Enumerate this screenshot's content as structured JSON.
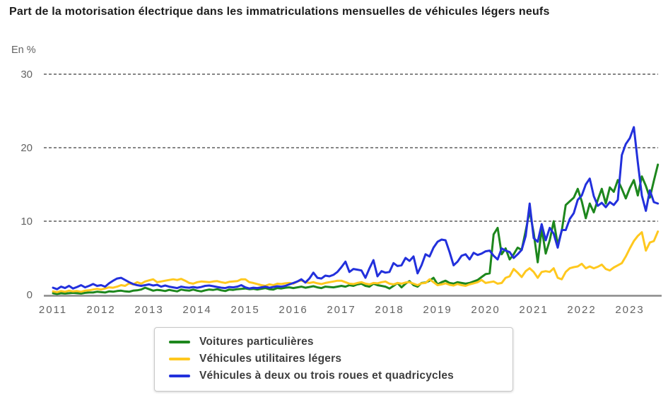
{
  "title": "Part de la motorisation électrique dans les immatriculations mensuelles de véhicules légers neufs",
  "unit_label": "En %",
  "chart_data": {
    "type": "line",
    "title": "Part de la motorisation électrique dans les immatriculations mensuelles de véhicules légers neufs",
    "xlabel": "",
    "ylabel": "En %",
    "ylim": [
      0,
      30
    ],
    "yticks": [
      0,
      10,
      20,
      30
    ],
    "grid": "horizontal-dashed",
    "legend_position": "bottom",
    "x_tick_years": [
      "2011",
      "2012",
      "2013",
      "2014",
      "2015",
      "2016",
      "2017",
      "2018",
      "2019",
      "2020",
      "2021",
      "2022",
      "2023"
    ],
    "x_frequency": "monthly",
    "x_range": "Jan 2011 - Aug 2023",
    "colors": {
      "grid": "#3f3f3f",
      "axis": "#8a8a8a",
      "tick_text": "#636363",
      "green": "#1d871d",
      "yellow": "#ffc81e",
      "blue": "#2230dc"
    },
    "series": [
      {
        "name": "Voitures particulières",
        "color": "#1d871d",
        "values": [
          0.2,
          0.1,
          0.2,
          0.15,
          0.2,
          0.25,
          0.2,
          0.15,
          0.25,
          0.3,
          0.3,
          0.4,
          0.35,
          0.3,
          0.45,
          0.4,
          0.5,
          0.55,
          0.45,
          0.4,
          0.55,
          0.6,
          0.7,
          0.95,
          0.75,
          0.55,
          0.65,
          0.6,
          0.5,
          0.65,
          0.55,
          0.45,
          0.7,
          0.6,
          0.55,
          0.7,
          0.55,
          0.45,
          0.6,
          0.7,
          0.65,
          0.75,
          0.6,
          0.5,
          0.7,
          0.65,
          0.75,
          0.8,
          0.85,
          0.75,
          0.8,
          0.7,
          0.8,
          0.9,
          0.75,
          0.7,
          0.9,
          0.85,
          0.95,
          1.0,
          0.9,
          1.0,
          1.1,
          0.95,
          1.05,
          1.15,
          1.0,
          0.9,
          1.1,
          1.05,
          1.0,
          1.1,
          1.2,
          1.1,
          1.3,
          1.2,
          1.4,
          1.5,
          1.2,
          1.1,
          1.5,
          1.3,
          1.2,
          1.1,
          0.85,
          1.2,
          1.6,
          1.0,
          1.5,
          1.85,
          1.3,
          1.1,
          1.6,
          1.65,
          1.9,
          2.3,
          1.4,
          1.7,
          1.9,
          1.6,
          1.5,
          1.7,
          1.6,
          1.5,
          1.6,
          1.8,
          2.0,
          2.4,
          2.8,
          2.9,
          8.2,
          9.1,
          5.5,
          6.3,
          4.8,
          5.5,
          6.4,
          6.1,
          8.7,
          11.4,
          8.4,
          4.4,
          9.0,
          5.6,
          7.4,
          10.0,
          6.8,
          8.7,
          12.2,
          12.7,
          13.2,
          14.4,
          12.7,
          10.4,
          12.4,
          11.2,
          12.9,
          14.4,
          12.4,
          14.6,
          14.0,
          15.6,
          14.4,
          13.1,
          14.5,
          15.6,
          13.5,
          16.1,
          14.8,
          13.2,
          15.5,
          17.7
        ]
      },
      {
        "name": "Véhicules utilitaires légers",
        "color": "#ffc81e",
        "values": [
          0.45,
          0.35,
          0.5,
          0.4,
          0.55,
          0.45,
          0.5,
          0.4,
          0.55,
          0.6,
          0.7,
          0.8,
          0.7,
          0.85,
          1.0,
          0.95,
          1.1,
          1.3,
          1.2,
          1.55,
          1.4,
          1.7,
          1.5,
          1.8,
          1.95,
          2.1,
          1.7,
          1.8,
          1.9,
          2.0,
          2.1,
          2.0,
          2.15,
          1.9,
          1.6,
          1.5,
          1.7,
          1.8,
          1.75,
          1.7,
          1.8,
          1.85,
          1.7,
          1.6,
          1.75,
          1.8,
          1.85,
          2.1,
          2.1,
          1.7,
          1.6,
          1.45,
          1.3,
          1.2,
          1.4,
          1.3,
          1.5,
          1.45,
          1.55,
          1.6,
          1.5,
          1.8,
          1.95,
          1.7,
          1.6,
          1.7,
          1.55,
          1.45,
          1.6,
          1.7,
          1.8,
          1.9,
          1.9,
          1.7,
          1.5,
          1.45,
          1.6,
          1.7,
          1.5,
          1.4,
          1.6,
          1.55,
          1.7,
          1.8,
          1.5,
          1.4,
          1.6,
          1.5,
          1.65,
          1.7,
          1.5,
          1.3,
          1.55,
          1.6,
          2.1,
          1.7,
          1.3,
          1.4,
          1.55,
          1.35,
          1.25,
          1.45,
          1.3,
          1.2,
          1.4,
          1.55,
          1.7,
          2.0,
          1.6,
          1.7,
          1.8,
          1.5,
          1.6,
          2.3,
          2.5,
          3.5,
          3.0,
          2.4,
          3.2,
          3.6,
          3.1,
          2.3,
          3.1,
          3.2,
          3.1,
          3.6,
          2.3,
          2.1,
          3.1,
          3.6,
          3.75,
          3.85,
          4.2,
          3.6,
          3.85,
          3.6,
          3.8,
          4.1,
          3.5,
          3.3,
          3.7,
          4.0,
          4.3,
          5.2,
          6.3,
          7.3,
          8.0,
          8.5,
          6.0,
          7.1,
          7.3,
          8.6
        ]
      },
      {
        "name": "Véhicules à deux ou trois roues et quadricycles",
        "color": "#2230dc",
        "values": [
          0.95,
          0.75,
          1.1,
          0.9,
          1.2,
          0.85,
          1.05,
          1.3,
          1.0,
          1.2,
          1.45,
          1.2,
          1.3,
          1.1,
          1.55,
          1.9,
          2.2,
          2.3,
          2.0,
          1.7,
          1.45,
          1.3,
          1.2,
          1.3,
          1.4,
          1.25,
          1.35,
          1.1,
          1.25,
          1.1,
          1.0,
          0.9,
          1.1,
          1.0,
          0.95,
          1.05,
          0.95,
          1.05,
          1.2,
          1.25,
          1.15,
          1.05,
          0.95,
          0.9,
          1.05,
          1.0,
          1.1,
          1.3,
          1.0,
          0.85,
          0.95,
          0.9,
          1.0,
          1.1,
          0.95,
          1.05,
          1.15,
          1.1,
          1.2,
          1.4,
          1.6,
          1.8,
          2.1,
          1.65,
          2.2,
          3.0,
          2.3,
          2.2,
          2.6,
          2.5,
          2.7,
          3.1,
          3.75,
          4.5,
          3.1,
          3.5,
          3.4,
          3.3,
          2.3,
          3.6,
          4.7,
          2.5,
          3.2,
          3.0,
          3.1,
          4.3,
          3.9,
          4.0,
          5.0,
          4.6,
          5.2,
          2.9,
          4.0,
          5.5,
          5.2,
          6.4,
          7.2,
          7.5,
          7.4,
          5.8,
          4.0,
          4.5,
          5.3,
          5.5,
          4.8,
          5.7,
          5.4,
          5.6,
          5.9,
          6.0,
          5.3,
          4.8,
          6.3,
          6.0,
          5.8,
          5.0,
          5.5,
          6.1,
          8.0,
          12.4,
          7.7,
          7.2,
          9.6,
          7.4,
          9.1,
          8.3,
          6.4,
          8.8,
          8.8,
          10.3,
          11.1,
          12.9,
          13.5,
          15.0,
          15.8,
          13.4,
          12.1,
          12.5,
          11.9,
          12.6,
          12.2,
          12.9,
          19.0,
          20.5,
          21.3,
          22.8,
          18.0,
          13.5,
          11.4,
          14.2,
          12.6,
          12.4
        ]
      }
    ]
  },
  "legend": {
    "items": [
      {
        "label": "Voitures particulières"
      },
      {
        "label": "Véhicules utilitaires légers"
      },
      {
        "label": "Véhicules à deux ou trois roues et quadricycles"
      }
    ]
  }
}
